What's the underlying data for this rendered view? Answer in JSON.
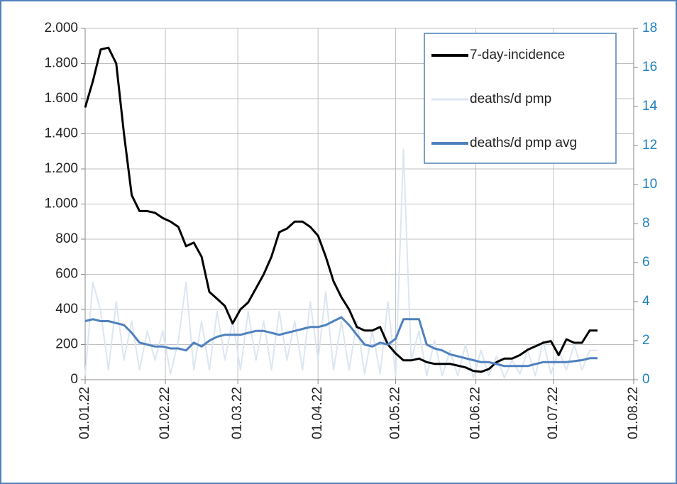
{
  "chart_data": {
    "type": "line",
    "x": [
      "01.01.22",
      "04.01.22",
      "07.01.22",
      "10.01.22",
      "13.01.22",
      "16.01.22",
      "19.01.22",
      "22.01.22",
      "25.01.22",
      "28.01.22",
      "31.01.22",
      "03.02.22",
      "06.02.22",
      "09.02.22",
      "12.02.22",
      "15.02.22",
      "18.02.22",
      "21.02.22",
      "24.02.22",
      "27.02.22",
      "02.03.22",
      "05.03.22",
      "08.03.22",
      "11.03.22",
      "14.03.22",
      "17.03.22",
      "20.03.22",
      "23.03.22",
      "26.03.22",
      "29.03.22",
      "01.04.22",
      "04.04.22",
      "07.04.22",
      "10.04.22",
      "13.04.22",
      "16.04.22",
      "19.04.22",
      "22.04.22",
      "25.04.22",
      "28.04.22",
      "01.05.22",
      "04.05.22",
      "07.05.22",
      "10.05.22",
      "13.05.22",
      "16.05.22",
      "19.05.22",
      "22.05.22",
      "25.05.22",
      "28.05.22",
      "31.05.22",
      "03.06.22",
      "06.06.22",
      "09.06.22",
      "12.06.22",
      "15.06.22",
      "18.06.22",
      "21.06.22",
      "24.06.22",
      "27.06.22",
      "30.06.22",
      "03.07.22",
      "06.07.22",
      "09.07.22",
      "12.07.22",
      "15.07.22",
      "18.07.22"
    ],
    "series": [
      {
        "name": "deaths/d pmp",
        "color": "#dce6f2",
        "axis": "y2",
        "width": 2,
        "values": [
          0.2,
          5.0,
          3.5,
          0.5,
          4.0,
          1.0,
          3.0,
          0.5,
          2.5,
          1.0,
          2.5,
          0.3,
          2.0,
          5.0,
          0.5,
          3.0,
          0.5,
          3.5,
          1.0,
          3.0,
          0.5,
          3.5,
          1.0,
          3.0,
          0.5,
          3.5,
          1.0,
          3.0,
          0.5,
          4.0,
          1.0,
          4.5,
          0.5,
          3.0,
          0.5,
          3.0,
          0.3,
          2.5,
          0.3,
          4.0,
          0.2,
          11.8,
          1.0,
          2.5,
          0.2,
          2.0,
          0.2,
          1.5,
          0.2,
          1.8,
          0.1,
          1.5,
          0.2,
          1.2,
          0.1,
          1.0,
          0.3,
          1.5,
          0.2,
          2.0,
          0.3,
          1.5,
          0.5,
          1.8,
          0.5,
          1.5,
          1.5
        ]
      },
      {
        "name": "7-day-incidence",
        "color": "#000000",
        "width": 3,
        "values": [
          1550,
          1700,
          1880,
          1890,
          1800,
          1400,
          1050,
          960,
          960,
          950,
          920,
          900,
          870,
          760,
          780,
          700,
          500,
          460,
          420,
          320,
          400,
          440,
          520,
          600,
          700,
          840,
          860,
          900,
          900,
          870,
          820,
          700,
          560,
          470,
          400,
          300,
          280,
          280,
          300,
          200,
          150,
          110,
          110,
          120,
          100,
          90,
          90,
          90,
          80,
          70,
          50,
          45,
          60,
          100,
          120,
          120,
          140,
          170,
          190,
          210,
          220,
          140,
          230,
          210,
          210,
          280,
          280
        ]
      },
      {
        "name": "deaths/d pmp avg",
        "color": "#4f81bd",
        "axis": "y2",
        "width": 3,
        "values": [
          3.0,
          3.1,
          3.0,
          3.0,
          2.9,
          2.8,
          2.4,
          1.9,
          1.8,
          1.7,
          1.7,
          1.6,
          1.6,
          1.5,
          1.9,
          1.7,
          2.0,
          2.2,
          2.3,
          2.3,
          2.3,
          2.4,
          2.5,
          2.5,
          2.4,
          2.3,
          2.4,
          2.5,
          2.6,
          2.7,
          2.7,
          2.8,
          3.0,
          3.2,
          2.8,
          2.3,
          1.8,
          1.7,
          1.9,
          1.8,
          2.1,
          3.1,
          3.1,
          3.1,
          1.8,
          1.6,
          1.5,
          1.3,
          1.2,
          1.1,
          1.0,
          0.9,
          0.9,
          0.8,
          0.7,
          0.7,
          0.7,
          0.7,
          0.8,
          0.9,
          0.9,
          0.9,
          0.9,
          0.95,
          1.0,
          1.1,
          1.1
        ]
      }
    ],
    "legend_order": [
      1,
      0,
      2
    ],
    "xlim": [
      "01.01.22",
      "01.08.22"
    ],
    "xticks": [
      "01.01.22",
      "01.02.22",
      "01.03.22",
      "01.04.22",
      "01.05.22",
      "01.06.22",
      "01.07.22",
      "01.08.22"
    ],
    "ylim": [
      0,
      2000
    ],
    "yticks": [
      0,
      200,
      400,
      600,
      800,
      {
        "value": 1000,
        "label": "1.000"
      },
      {
        "value": 1200,
        "label": "1.200"
      },
      {
        "value": 1400,
        "label": "1.400"
      },
      {
        "value": 1600,
        "label": "1.600"
      },
      {
        "value": 1800,
        "label": "1.800"
      },
      {
        "value": 2000,
        "label": "2.000"
      }
    ],
    "y2lim": [
      0,
      18
    ],
    "y2ticks": [
      0,
      2,
      4,
      6,
      8,
      10,
      12,
      14,
      16,
      18
    ],
    "grid": true
  }
}
